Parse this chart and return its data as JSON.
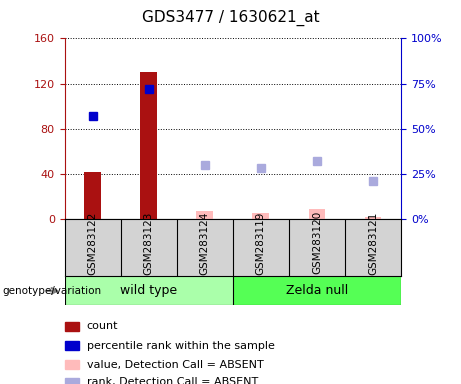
{
  "title": "GDS3477 / 1630621_at",
  "samples": [
    "GSM283122",
    "GSM283123",
    "GSM283124",
    "GSM283119",
    "GSM283120",
    "GSM283121"
  ],
  "count_values": [
    42,
    130,
    null,
    null,
    null,
    null
  ],
  "value_absent": [
    null,
    null,
    7,
    5,
    9,
    2
  ],
  "rank_present": [
    57,
    72,
    null,
    null,
    null,
    null
  ],
  "rank_absent": [
    null,
    null,
    30,
    28,
    32,
    21
  ],
  "ylim_left": [
    0,
    160
  ],
  "ylim_right": [
    0,
    100
  ],
  "yticks_left": [
    0,
    40,
    80,
    120,
    160
  ],
  "yticks_right": [
    0,
    25,
    50,
    75,
    100
  ],
  "bar_color_present": "#aa1111",
  "bar_color_absent": "#ffbbbb",
  "dot_color_present": "#0000cc",
  "dot_color_absent": "#aaaadd",
  "legend_items": [
    {
      "label": "count",
      "color": "#aa1111"
    },
    {
      "label": "percentile rank within the sample",
      "color": "#0000cc"
    },
    {
      "label": "value, Detection Call = ABSENT",
      "color": "#ffbbbb"
    },
    {
      "label": "rank, Detection Call = ABSENT",
      "color": "#aaaadd"
    }
  ],
  "fig_width": 4.61,
  "fig_height": 3.84,
  "dpi": 100
}
